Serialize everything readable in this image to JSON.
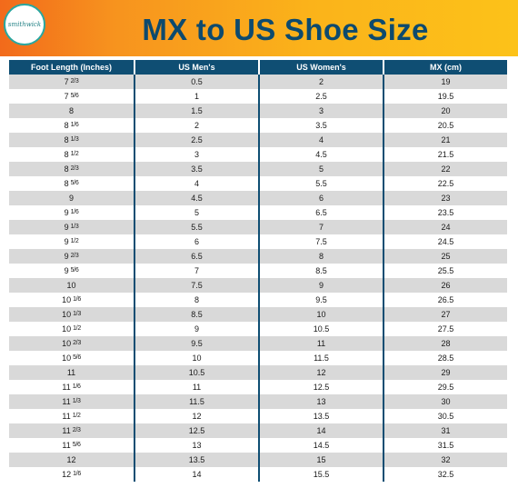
{
  "logo_text": "smithwick",
  "title": "MX to US Shoe Size",
  "columns": [
    "Foot Length (Inches)",
    "US Men's",
    "US Women's",
    "MX (cm)"
  ],
  "rows": [
    {
      "length": "7",
      "frac": "2/3",
      "men": "0.5",
      "women": "2",
      "mx": "19"
    },
    {
      "length": "7",
      "frac": "5/6",
      "men": "1",
      "women": "2.5",
      "mx": "19.5"
    },
    {
      "length": "8",
      "frac": "",
      "men": "1.5",
      "women": "3",
      "mx": "20"
    },
    {
      "length": "8",
      "frac": "1/6",
      "men": "2",
      "women": "3.5",
      "mx": "20.5"
    },
    {
      "length": "8",
      "frac": "1/3",
      "men": "2.5",
      "women": "4",
      "mx": "21"
    },
    {
      "length": "8",
      "frac": "1/2",
      "men": "3",
      "women": "4.5",
      "mx": "21.5"
    },
    {
      "length": "8",
      "frac": "2/3",
      "men": "3.5",
      "women": "5",
      "mx": "22"
    },
    {
      "length": "8",
      "frac": "5/6",
      "men": "4",
      "women": "5.5",
      "mx": "22.5"
    },
    {
      "length": "9",
      "frac": "",
      "men": "4.5",
      "women": "6",
      "mx": "23"
    },
    {
      "length": "9",
      "frac": "1/6",
      "men": "5",
      "women": "6.5",
      "mx": "23.5"
    },
    {
      "length": "9",
      "frac": "1/3",
      "men": "5.5",
      "women": "7",
      "mx": "24"
    },
    {
      "length": "9",
      "frac": "1/2",
      "men": "6",
      "women": "7.5",
      "mx": "24.5"
    },
    {
      "length": "9",
      "frac": "2/3",
      "men": "6.5",
      "women": "8",
      "mx": "25"
    },
    {
      "length": "9",
      "frac": "5/6",
      "men": "7",
      "women": "8.5",
      "mx": "25.5"
    },
    {
      "length": "10",
      "frac": "",
      "men": "7.5",
      "women": "9",
      "mx": "26"
    },
    {
      "length": "10",
      "frac": "1/6",
      "men": "8",
      "women": "9.5",
      "mx": "26.5"
    },
    {
      "length": "10",
      "frac": "1/3",
      "men": "8.5",
      "women": "10",
      "mx": "27"
    },
    {
      "length": "10",
      "frac": "1/2",
      "men": "9",
      "women": "10.5",
      "mx": "27.5"
    },
    {
      "length": "10",
      "frac": "2/3",
      "men": "9.5",
      "women": "11",
      "mx": "28"
    },
    {
      "length": "10",
      "frac": "5/6",
      "men": "10",
      "women": "11.5",
      "mx": "28.5"
    },
    {
      "length": "11",
      "frac": "",
      "men": "10.5",
      "women": "12",
      "mx": "29"
    },
    {
      "length": "11",
      "frac": "1/6",
      "men": "11",
      "women": "12.5",
      "mx": "29.5"
    },
    {
      "length": "11",
      "frac": "1/3",
      "men": "11.5",
      "women": "13",
      "mx": "30"
    },
    {
      "length": "11",
      "frac": "1/2",
      "men": "12",
      "women": "13.5",
      "mx": "30.5"
    },
    {
      "length": "11",
      "frac": "2/3",
      "men": "12.5",
      "women": "14",
      "mx": "31"
    },
    {
      "length": "11",
      "frac": "5/6",
      "men": "13",
      "women": "14.5",
      "mx": "31.5"
    },
    {
      "length": "12",
      "frac": "",
      "men": "13.5",
      "women": "15",
      "mx": "32"
    },
    {
      "length": "12",
      "frac": "1/6",
      "men": "14",
      "women": "15.5",
      "mx": "32.5"
    }
  ],
  "colors": {
    "header_bg": "#0f4e73",
    "title_text": "#0d4a6e",
    "banner_start": "#f26a1b",
    "banner_end": "#fcc219",
    "stripe": "#d9d9d9",
    "logo_ring": "#2aa7a0"
  }
}
